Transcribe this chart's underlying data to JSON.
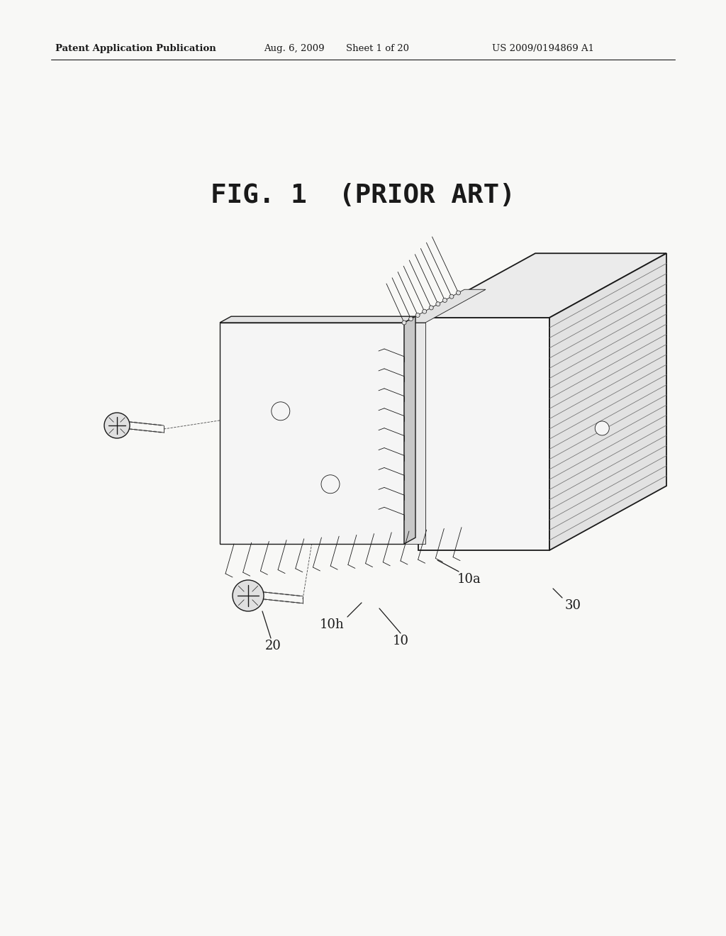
{
  "bg": "#f8f8f6",
  "ink": "#1a1a1a",
  "header_left": "Patent Application Publication",
  "header_mid1": "Aug. 6, 2009",
  "header_mid2": "Sheet 1 of 20",
  "header_right": "US 2009/0194869 A1",
  "fig_title": "FIG. 1  (PRIOR ART)",
  "face_light": "#f5f5f5",
  "face_mid": "#e2e2e2",
  "face_dark": "#c8c8c8",
  "face_top": "#ebebeb"
}
